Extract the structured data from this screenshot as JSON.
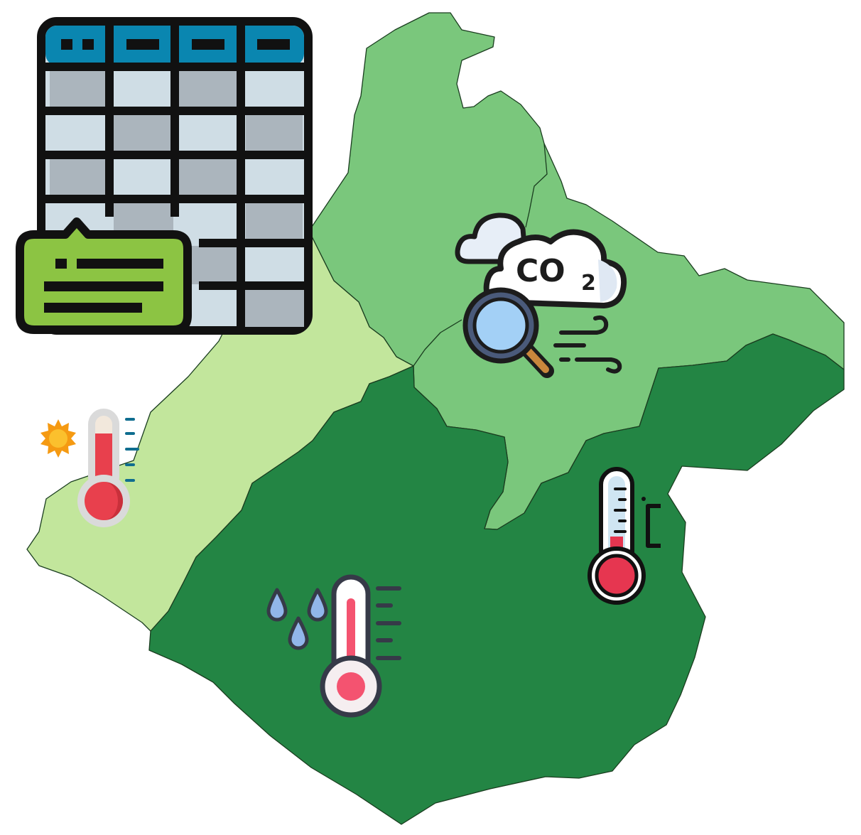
{
  "map": {
    "regions": [
      {
        "name": "north-region",
        "fill": "#7ac77c"
      },
      {
        "name": "west-region",
        "fill": "#c2e69c"
      },
      {
        "name": "south-region",
        "fill": "#238544"
      }
    ],
    "border_color": "#1a3d1f"
  },
  "icons": {
    "table": {
      "icon": "spreadsheet-table-icon",
      "header_color": "#0a86b0",
      "cell_dark": "#abb5bd",
      "cell_light": "#cfdde5",
      "note_color": "#8cc443"
    },
    "co2": {
      "icon": "co2-cloud-magnifier-icon",
      "text_main": "CO",
      "text_sub": "2",
      "lens_color": "#a3d0f6",
      "handle_color": "#c9873c"
    },
    "sun_thermometer": {
      "icon": "sun-thermometer-icon",
      "sun_color": "#f59a12",
      "bulb_color": "#e8404d",
      "tick_color": "#0f6d8f"
    },
    "celsius_thermometer": {
      "icon": "celsius-thermometer-icon",
      "bulb_color": "#e63650",
      "tube_color": "#cfe5f2"
    },
    "rain_thermometer": {
      "icon": "rain-thermometer-icon",
      "drop_color": "#91b6ea",
      "bulb_color": "#f45370",
      "outline_color": "#363a48"
    }
  }
}
